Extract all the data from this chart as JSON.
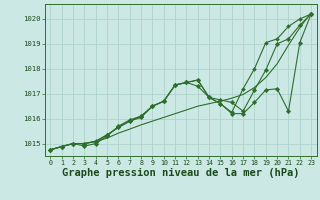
{
  "background_color": "#cce8e4",
  "grid_color": "#aacfca",
  "line_color": "#2d6e2d",
  "title": "Graphe pression niveau de la mer (hPa)",
  "title_fontsize": 7.5,
  "title_color": "#1a4a1a",
  "ylim": [
    1014.5,
    1020.6
  ],
  "xlim": [
    -0.5,
    23.5
  ],
  "yticks": [
    1015,
    1016,
    1017,
    1018,
    1019,
    1020
  ],
  "xticks": [
    0,
    1,
    2,
    3,
    4,
    5,
    6,
    7,
    8,
    9,
    10,
    11,
    12,
    13,
    14,
    15,
    16,
    17,
    18,
    19,
    20,
    21,
    22,
    23
  ],
  "s1": [
    1014.75,
    1014.9,
    1015.0,
    1015.0,
    1015.1,
    1015.25,
    1015.45,
    1015.6,
    1015.75,
    1015.9,
    1016.05,
    1016.2,
    1016.35,
    1016.5,
    1016.6,
    1016.7,
    1016.8,
    1016.95,
    1017.2,
    1017.6,
    1018.15,
    1018.9,
    1019.65,
    1020.2
  ],
  "s2": [
    1014.75,
    1014.9,
    1015.0,
    1015.0,
    1015.05,
    1015.3,
    1015.6,
    1015.85,
    1016.05,
    1016.5,
    1016.7,
    1017.35,
    1017.45,
    1017.3,
    1016.85,
    1016.75,
    1016.65,
    1016.35,
    1017.2,
    1018.0,
    1019.0,
    1019.2,
    1019.75,
    1020.2
  ],
  "s3": [
    1014.75,
    1014.9,
    1015.0,
    1014.9,
    1015.0,
    1015.3,
    1015.7,
    1015.95,
    1016.1,
    1016.5,
    1016.7,
    1017.35,
    1017.45,
    1017.55,
    1016.85,
    1016.6,
    1016.25,
    1016.2,
    1016.65,
    1017.2,
    1017.15,
    1016.3,
    1019.0,
    1020.2
  ],
  "s4": [
    1014.75,
    1014.9,
    1015.0,
    1015.0,
    1015.1,
    1015.35,
    1015.65,
    1015.9,
    1016.1,
    1016.5,
    1016.7,
    1017.35,
    1017.45,
    1017.55,
    1016.85,
    1016.6,
    1016.25,
    1017.2,
    1018.0,
    1019.0,
    1019.2,
    1019.7,
    1020.0,
    1020.2
  ]
}
